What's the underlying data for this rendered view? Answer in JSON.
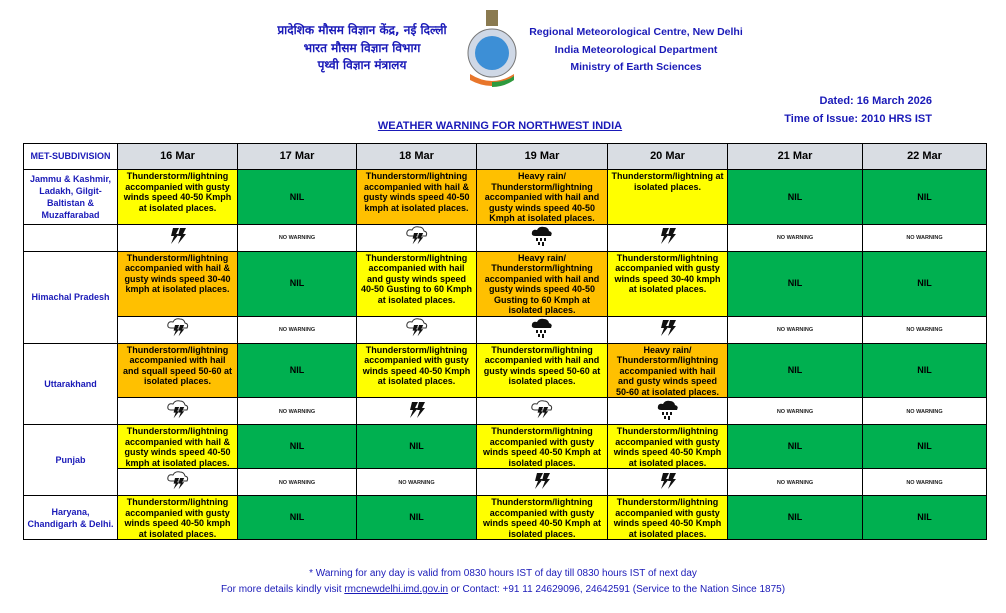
{
  "header": {
    "hindi_lines": [
      "प्रादेशिक मौसम विज्ञान केंद्र, नई दिल्ली",
      "भारत मौसम विज्ञान विभाग",
      "पृथ्वी विज्ञान मंत्रालय"
    ],
    "english_lines": [
      "Regional Meteorological Centre, New Delhi",
      "India Meteorological Department",
      "Ministry of Earth Sciences"
    ],
    "dated": "Dated: 16 March 2026",
    "issue": "Time of Issue: 2010 HRS IST",
    "title": "WEATHER WARNING FOR NORTHWEST INDIA"
  },
  "colors": {
    "yellow": "#ffff00",
    "orange": "#ffc000",
    "green": "#00b050"
  },
  "table": {
    "subdivision_header": "MET-SUBDIVISION",
    "dates": [
      "16 Mar",
      "17 Mar",
      "18 Mar",
      "19 Mar",
      "20 Mar",
      "21 Mar",
      "22 Mar"
    ],
    "no_warning_label": "NO WARNING",
    "rows": [
      {
        "name": "Jammu & Kashmir, Ladakh, Gilgit-Baltistan & Muzaffarabad",
        "label_spans_icons": false,
        "cells": [
          {
            "text": "Thunderstorm/lightning accompanied with gusty winds speed 40-50 Kmph at isolated places.",
            "level": "yellow",
            "icon": "lightning-icon"
          },
          {
            "text": "NIL",
            "level": "green",
            "icon": "none"
          },
          {
            "text": "Thunderstorm/lightning accompanied with hail & gusty winds speed 40-50 kmph at isolated places.",
            "level": "orange",
            "icon": "thundercloud-icon"
          },
          {
            "text": "Heavy rain/ Thunderstorm/lightning accompanied with hail and gusty winds speed 40-50 Kmph at isolated places.",
            "level": "orange",
            "icon": "heavy-rain-icon"
          },
          {
            "text": "Thunderstorm/lightning at isolated places.",
            "level": "yellow",
            "icon": "lightning-icon"
          },
          {
            "text": "NIL",
            "level": "green",
            "icon": "none"
          },
          {
            "text": "NIL",
            "level": "green",
            "icon": "none"
          }
        ]
      },
      {
        "name": "Himachal Pradesh",
        "label_spans_icons": true,
        "cells": [
          {
            "text": "Thunderstorm/lightning accompanied with hail & gusty winds speed 30-40 kmph at isolated places.",
            "level": "orange",
            "icon": "thundercloud-icon"
          },
          {
            "text": "NIL",
            "level": "green",
            "icon": "none"
          },
          {
            "text": "Thunderstorm/lightning accompanied with hail and gusty winds speed 40-50 Gusting to 60 Kmph at isolated places.",
            "level": "yellow",
            "icon": "thundercloud-icon"
          },
          {
            "text": "Heavy rain/ Thunderstorm/lightning accompanied with hail and gusty winds speed 40-50 Gusting to 60 Kmph at isolated places.",
            "level": "orange",
            "icon": "heavy-rain-icon"
          },
          {
            "text": "Thunderstorm/lightning accompanied with gusty winds speed 30-40 kmph at isolated places.",
            "level": "yellow",
            "icon": "lightning-icon"
          },
          {
            "text": "NIL",
            "level": "green",
            "icon": "none"
          },
          {
            "text": "NIL",
            "level": "green",
            "icon": "none"
          }
        ]
      },
      {
        "name": "Uttarakhand",
        "label_spans_icons": true,
        "cells": [
          {
            "text": "Thunderstorm/lightning accompanied with hail and squall speed 50-60 at isolated places.",
            "level": "orange",
            "icon": "thundercloud-icon"
          },
          {
            "text": "NIL",
            "level": "green",
            "icon": "none"
          },
          {
            "text": "Thunderstorm/lightning accompanied with gusty winds speed 40-50 Kmph at isolated places.",
            "level": "yellow",
            "icon": "lightning-icon"
          },
          {
            "text": "Thunderstorm/lightning accompanied with hail and gusty winds speed 50-60 at isolated places.",
            "level": "yellow",
            "icon": "thundercloud-icon"
          },
          {
            "text": "Heavy rain/ Thunderstorm/lightning accompanied with hail and gusty winds speed 50-60 at isolated places.",
            "level": "orange",
            "icon": "heavy-rain-icon"
          },
          {
            "text": "NIL",
            "level": "green",
            "icon": "none"
          },
          {
            "text": "NIL",
            "level": "green",
            "icon": "none"
          }
        ]
      },
      {
        "name": "Punjab",
        "label_spans_icons": true,
        "cells": [
          {
            "text": "Thunderstorm/lightning accompanied with hail & gusty winds speed 40-50 kmph at isolated places.",
            "level": "yellow",
            "icon": "thundercloud-icon"
          },
          {
            "text": "NIL",
            "level": "green",
            "icon": "none"
          },
          {
            "text": "NIL",
            "level": "green",
            "icon": "none"
          },
          {
            "text": "Thunderstorm/lightning accompanied with gusty winds speed 40-50 Kmph at isolated places.",
            "level": "yellow",
            "icon": "lightning-icon"
          },
          {
            "text": "Thunderstorm/lightning accompanied with gusty winds speed 40-50 Kmph at isolated places.",
            "level": "yellow",
            "icon": "lightning-icon"
          },
          {
            "text": "NIL",
            "level": "green",
            "icon": "none"
          },
          {
            "text": "NIL",
            "level": "green",
            "icon": "none"
          }
        ]
      },
      {
        "name": "Haryana, Chandigarh & Delhi.",
        "label_spans_icons": false,
        "no_icon_row": true,
        "cells": [
          {
            "text": "Thunderstorm/lightning accompanied with gusty winds speed 40-50 kmph at isolated places.",
            "level": "yellow"
          },
          {
            "text": "NIL",
            "level": "green"
          },
          {
            "text": "NIL",
            "level": "green"
          },
          {
            "text": "Thunderstorm/lightning accompanied with gusty winds speed 40-50 Kmph at isolated places.",
            "level": "yellow"
          },
          {
            "text": "Thunderstorm/lightning accompanied with gusty winds speed 40-50 Kmph at isolated places.",
            "level": "yellow"
          },
          {
            "text": "NIL",
            "level": "green"
          },
          {
            "text": "NIL",
            "level": "green"
          }
        ]
      }
    ]
  },
  "footer": {
    "note": "* Warning for any day is valid from 0830 hours IST of day till 0830 hours IST of next day",
    "details_prefix": "For more details kindly visit ",
    "link": "rmcnewdelhi.imd.gov.in",
    "details_suffix": " or Contact: +91 11 24629096, 24642591 (Service to the Nation Since 1875)"
  }
}
